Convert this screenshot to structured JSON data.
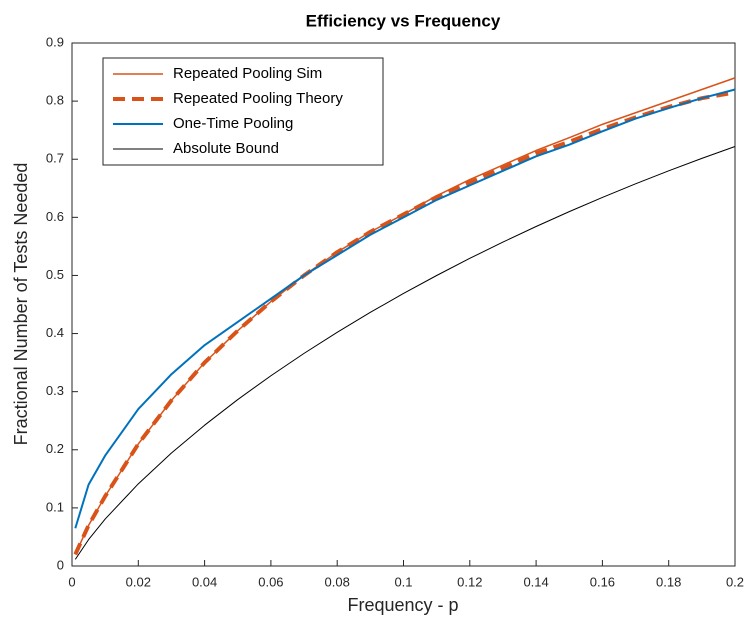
{
  "chart_data": {
    "type": "line",
    "title": "Efficiency vs Frequency",
    "x_label": "Frequency - p",
    "y_label": "Fractional Number of Tests Needed",
    "x": [
      0.001,
      0.005,
      0.01,
      0.02,
      0.03,
      0.04,
      0.05,
      0.06,
      0.07,
      0.08,
      0.09,
      0.1,
      0.11,
      0.12,
      0.13,
      0.14,
      0.15,
      0.16,
      0.17,
      0.18,
      0.19,
      0.2
    ],
    "series": [
      {
        "name": "Repeated Pooling Sim",
        "color": "#d95319",
        "width": 1.5,
        "dashed": false,
        "values": [
          0.02,
          0.07,
          0.12,
          0.21,
          0.285,
          0.35,
          0.405,
          0.455,
          0.5,
          0.54,
          0.575,
          0.605,
          0.637,
          0.665,
          0.69,
          0.715,
          0.737,
          0.76,
          0.78,
          0.8,
          0.82,
          0.84
        ]
      },
      {
        "name": "Repeated Pooling Theory",
        "color": "#d95319",
        "width": 4,
        "dashed": true,
        "values": [
          0.02,
          0.07,
          0.12,
          0.21,
          0.285,
          0.35,
          0.405,
          0.455,
          0.5,
          0.54,
          0.575,
          0.605,
          0.635,
          0.66,
          0.685,
          0.71,
          0.73,
          0.752,
          0.772,
          0.79,
          0.805,
          0.815
        ]
      },
      {
        "name": "One-Time Pooling",
        "color": "#0072bd",
        "width": 2,
        "dashed": false,
        "values": [
          0.065,
          0.14,
          0.19,
          0.27,
          0.33,
          0.38,
          0.42,
          0.46,
          0.5,
          0.535,
          0.57,
          0.6,
          0.63,
          0.655,
          0.68,
          0.705,
          0.725,
          0.748,
          0.77,
          0.788,
          0.805,
          0.82
        ]
      },
      {
        "name": "Absolute Bound",
        "color": "#000000",
        "width": 1,
        "dashed": false,
        "values": [
          0.0114,
          0.0454,
          0.0808,
          0.1414,
          0.1944,
          0.2423,
          0.2864,
          0.3274,
          0.3659,
          0.4022,
          0.4365,
          0.469,
          0.4999,
          0.5294,
          0.5574,
          0.5842,
          0.6098,
          0.6343,
          0.6577,
          0.6801,
          0.7015,
          0.7219
        ]
      }
    ],
    "xlim": [
      0,
      0.2
    ],
    "xticks": [
      0,
      0.02,
      0.04,
      0.06,
      0.08,
      0.1,
      0.12,
      0.14,
      0.16,
      0.18,
      0.2
    ],
    "ylim": [
      0,
      0.9
    ],
    "yticks": [
      0,
      0.1,
      0.2,
      0.3,
      0.4,
      0.5,
      0.6,
      0.7,
      0.8,
      0.9
    ],
    "grid": false,
    "legend": "upper left"
  }
}
